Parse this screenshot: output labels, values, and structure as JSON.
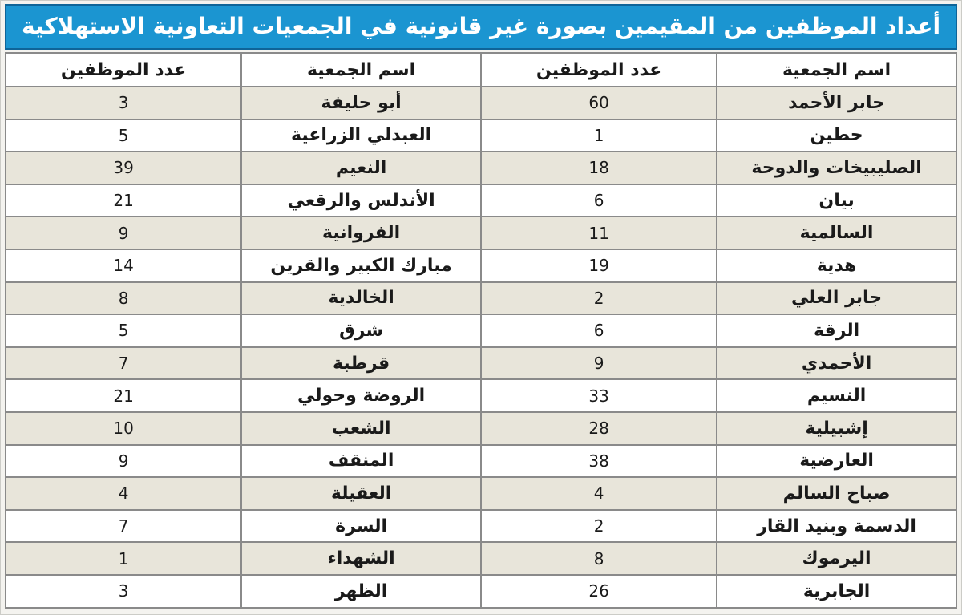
{
  "title": "أعداد الموظفين من المقيمين بصورة غير قانونية في الجمعيات التعاونية الاستهلاكية",
  "colors": {
    "title_bg": "#1b95d1",
    "title_border": "#0f6498",
    "title_text": "#ffffff",
    "grid_line": "#8a8a8a",
    "row_shaded": "#e8e5da",
    "row_white": "#ffffff",
    "text": "#1a1a1a"
  },
  "chart_data": {
    "type": "table",
    "title": "أعداد الموظفين من المقيمين بصورة غير قانونية في الجمعيات التعاونية الاستهلاكية",
    "columns": [
      "اسم الجمعية",
      "عدد الموظفين",
      "اسم الجمعية",
      "عدد الموظفين"
    ],
    "rows": [
      [
        "جابر الأحمد",
        60,
        "أبو حليفة",
        3
      ],
      [
        "حطين",
        1,
        "العبدلي الزراعية",
        5
      ],
      [
        "الصليبيخات والدوحة",
        18,
        "النعيم",
        39
      ],
      [
        "بيان",
        6,
        "الأندلس والرقعي",
        21
      ],
      [
        "السالمية",
        11,
        "الفروانية",
        9
      ],
      [
        "هدية",
        19,
        "مبارك الكبير والقرين",
        14
      ],
      [
        "جابر العلي",
        2,
        "الخالدية",
        8
      ],
      [
        "الرقة",
        6,
        "شرق",
        5
      ],
      [
        "الأحمدي",
        9,
        "قرطبة",
        7
      ],
      [
        "النسيم",
        33,
        "الروضة وحولي",
        21
      ],
      [
        "إشبيلية",
        28,
        "الشعب",
        10
      ],
      [
        "العارضية",
        38,
        "المنقف",
        9
      ],
      [
        "صباح السالم",
        4,
        "العقيلة",
        4
      ],
      [
        "الدسمة وبنيد القار",
        2,
        "السرة",
        7
      ],
      [
        "اليرموك",
        8,
        "الشهداء",
        1
      ],
      [
        "الجابرية",
        26,
        "الظهر",
        3
      ]
    ]
  }
}
